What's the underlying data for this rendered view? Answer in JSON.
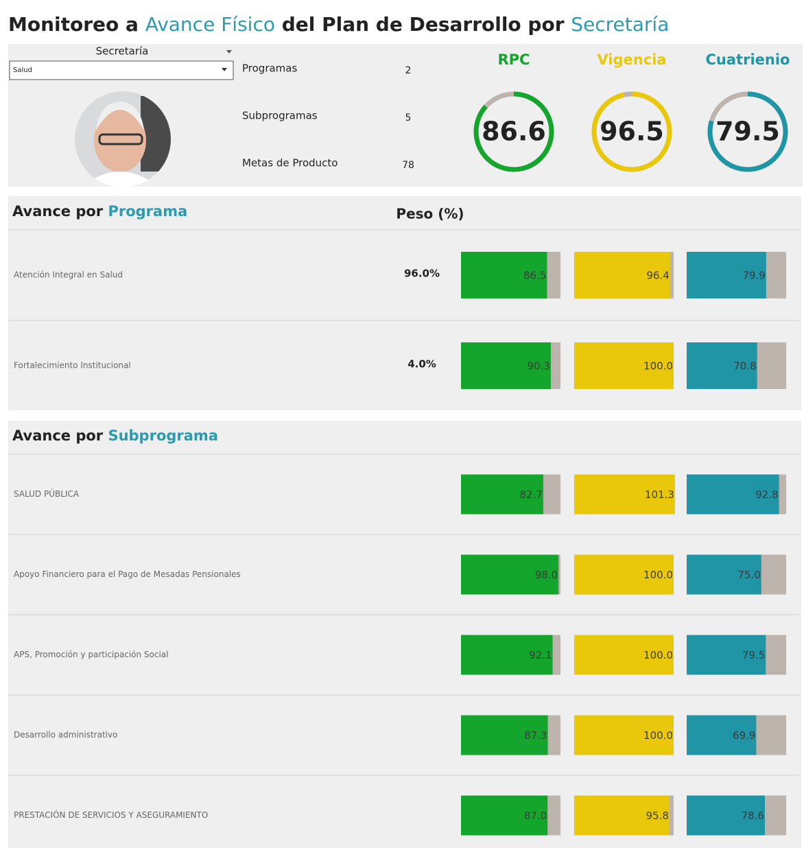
{
  "header": {
    "title_parts": [
      "Monitoreo a",
      "Avance Físico",
      "del Plan de Desarrollo por",
      "Secretaría"
    ]
  },
  "filter": {
    "label": "Secretaría",
    "selected": "Salud"
  },
  "counts": [
    {
      "label": "Programas",
      "value": 2
    },
    {
      "label": "Subprogramas",
      "value": 5
    },
    {
      "label": "Metas de Producto",
      "value": 78
    }
  ],
  "metrics": [
    {
      "name": "RPC",
      "color": "#14a52c",
      "value": 86.6
    },
    {
      "name": "Vigencia",
      "color": "#e9c80c",
      "value": 96.5
    },
    {
      "name": "Cuatrienio",
      "color": "#1f95a5",
      "value": 79.5
    }
  ],
  "remainder_color": "#bdb4ae",
  "scale": [
    0,
    100
  ],
  "programs": {
    "title_parts": [
      "Avance por",
      "Programa"
    ],
    "weight_header": "Peso (%)",
    "rows": [
      {
        "name": "Atención Integral en Salud",
        "weight": 96.0,
        "weight_label": "96.0%",
        "values": [
          86.5,
          96.4,
          79.9
        ],
        "value_labels": [
          "86.5",
          "96.4",
          "79.9"
        ]
      },
      {
        "name": "Fortalecimiento Institucional",
        "weight": 4.0,
        "weight_label": "4.0%",
        "values": [
          90.3,
          100,
          70.8
        ],
        "value_labels": [
          "90.3",
          "100.0",
          "70.8"
        ]
      }
    ]
  },
  "subprograms": {
    "title_parts": [
      "Avance por",
      "Subprograma"
    ],
    "rows": [
      {
        "name": "SALUD PÚBLICA",
        "values": [
          82.7,
          101.3,
          92.8
        ],
        "value_labels": [
          "82.7",
          "101.3",
          "92.8"
        ]
      },
      {
        "name": "Apoyo Financiero para el Pago de Mesadas Pensionales",
        "values": [
          98,
          100,
          75
        ],
        "value_labels": [
          "98.0",
          "100.0",
          "75.0"
        ]
      },
      {
        "name": "APS, Promoción y participación Social",
        "values": [
          92.1,
          100,
          79.5
        ],
        "value_labels": [
          "92.1",
          "100.0",
          "79.5"
        ]
      },
      {
        "name": "Desarrollo administrativo",
        "values": [
          87.3,
          100,
          69.9
        ],
        "value_labels": [
          "87.3",
          "100.0",
          "69.9"
        ]
      },
      {
        "name": "PRESTACIÓN DE SERVICIOS Y ASEGURAMIENTO",
        "values": [
          87,
          95.8,
          78.6
        ],
        "value_labels": [
          "87.0",
          "95.8",
          "78.6"
        ]
      }
    ]
  }
}
